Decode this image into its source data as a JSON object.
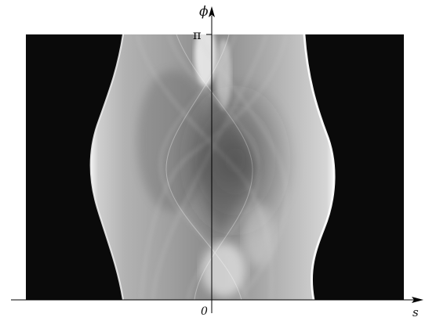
{
  "figure": {
    "s_label": "s",
    "phi_label": "ϕ",
    "origin_label": "0",
    "pi_label": "π"
  },
  "colors": {
    "background_black": "#0a0a0a",
    "band_light": "#d8d8d8",
    "band_mid": "#a9a9a9",
    "band_dark": "#6a6a6a",
    "axis": "#000000"
  }
}
